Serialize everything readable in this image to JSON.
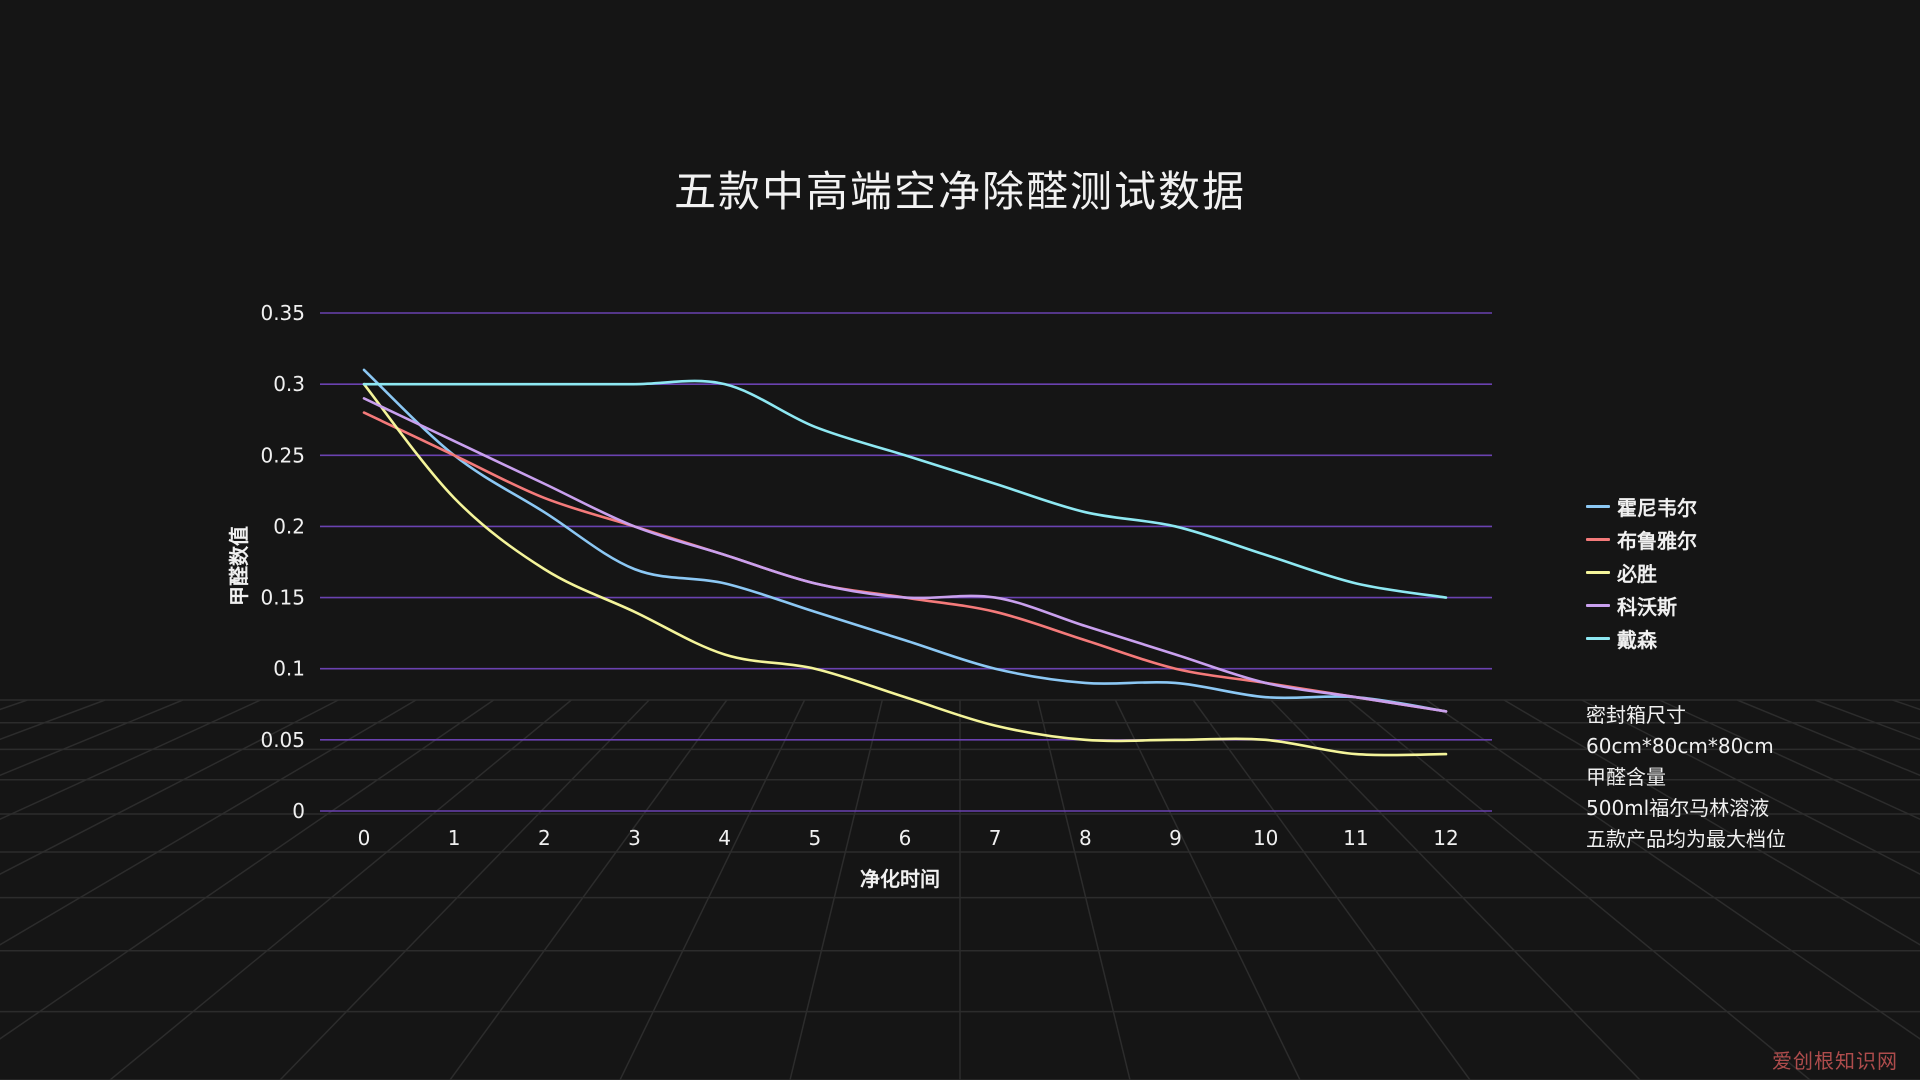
{
  "chart_data": {
    "type": "line",
    "title": "五款中高端空净除醛测试数据",
    "xlabel": "净化时间",
    "ylabel": "甲醛数值",
    "categories": [
      "0",
      "1",
      "2",
      "3",
      "4",
      "5",
      "6",
      "7",
      "8",
      "9",
      "10",
      "11",
      "12"
    ],
    "yticks": [
      "0",
      "0.05",
      "0.1",
      "0.15",
      "0.2",
      "0.25",
      "0.3",
      "0.35"
    ],
    "ylim": [
      0,
      0.35
    ],
    "grid": "horizontal",
    "grid_color": "#6a42b0",
    "legend_position": "right",
    "series": [
      {
        "name": "霍尼韦尔",
        "color": "#8cc8f4",
        "values": [
          0.31,
          0.25,
          0.21,
          0.17,
          0.16,
          0.14,
          0.12,
          0.1,
          0.09,
          0.09,
          0.08,
          0.08,
          0.07
        ]
      },
      {
        "name": "布鲁雅尔",
        "color": "#f47a7a",
        "values": [
          0.28,
          0.25,
          0.22,
          0.2,
          0.18,
          0.16,
          0.15,
          0.14,
          0.12,
          0.1,
          0.09,
          0.08,
          0.07
        ]
      },
      {
        "name": "必胜",
        "color": "#f4f49a",
        "values": [
          0.3,
          0.22,
          0.17,
          0.14,
          0.11,
          0.1,
          0.08,
          0.06,
          0.05,
          0.05,
          0.05,
          0.04,
          0.04
        ]
      },
      {
        "name": "科沃斯",
        "color": "#c9a0ee",
        "values": [
          0.29,
          0.26,
          0.23,
          0.2,
          0.18,
          0.16,
          0.15,
          0.15,
          0.13,
          0.11,
          0.09,
          0.08,
          0.07
        ]
      },
      {
        "name": "戴森",
        "color": "#8ee8f2",
        "values": [
          0.3,
          0.3,
          0.3,
          0.3,
          0.3,
          0.27,
          0.25,
          0.23,
          0.21,
          0.2,
          0.18,
          0.16,
          0.15
        ]
      }
    ]
  },
  "notes": [
    "密封箱尺寸",
    "60cm*80cm*80cm",
    "甲醛含量",
    "500ml福尔马林溶液",
    "五款产品均为最大档位"
  ],
  "watermark": "爱创根知识网"
}
